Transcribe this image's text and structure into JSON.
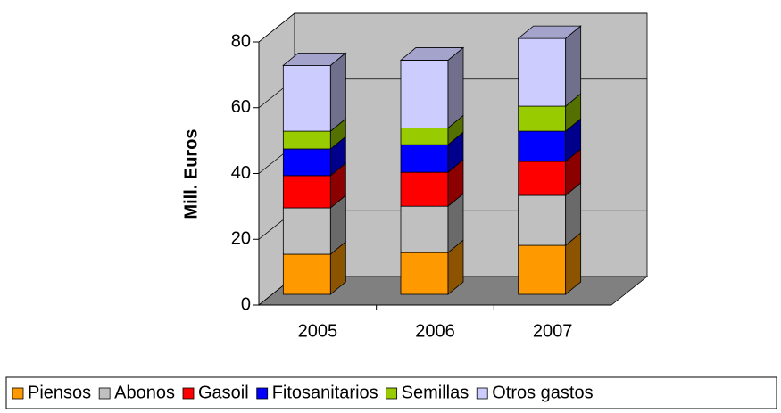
{
  "chart_data": {
    "type": "bar3d_stacked",
    "y_label": "Mill. Euros",
    "categories": [
      "2005",
      "2006",
      "2007"
    ],
    "series": [
      {
        "name": "Piensos",
        "color": "#ff9900",
        "values": [
          12.2,
          12.7,
          14.9
        ]
      },
      {
        "name": "Abonos",
        "color": "#c0c0c0",
        "values": [
          14.1,
          14.1,
          15.2
        ]
      },
      {
        "name": "Gasoil",
        "color": "#ff0000",
        "values": [
          9.8,
          10.3,
          10.3
        ]
      },
      {
        "name": "Fitosanitarios",
        "color": "#0000ff",
        "values": [
          8.1,
          8.4,
          9.2
        ]
      },
      {
        "name": "Semillas",
        "color": "#99cc00",
        "values": [
          5.4,
          5.1,
          7.6
        ]
      },
      {
        "name": "Otros gastos",
        "color": "#ccccff",
        "values": [
          20.0,
          20.6,
          20.6
        ]
      }
    ],
    "ylim": [
      0,
      80
    ],
    "yticks": [
      0,
      20,
      40,
      60,
      80
    ],
    "grid": true,
    "legend": "bottom"
  }
}
